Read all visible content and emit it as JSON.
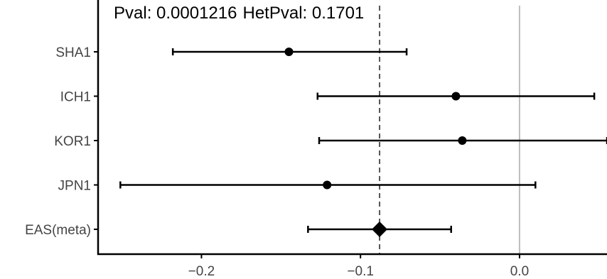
{
  "chart_data": {
    "type": "forest",
    "annotation": {
      "pval_label": "Pval: 0.0001216",
      "hetpval_label": "HetPval: 0.1701"
    },
    "xlim": [
      -0.265,
      0.055
    ],
    "x_ticks": [
      -0.2,
      -0.1,
      0.0
    ],
    "x_tick_labels": [
      "−0.2",
      "−0.1",
      "0.0"
    ],
    "reference_line": 0.0,
    "meta_line": -0.088,
    "studies": [
      {
        "label": "SHA1",
        "estimate": -0.145,
        "lower": -0.218,
        "upper": -0.071
      },
      {
        "label": "ICH1",
        "estimate": -0.04,
        "lower": -0.127,
        "upper": 0.047
      },
      {
        "label": "KOR1",
        "estimate": -0.036,
        "lower": -0.126,
        "upper": 0.055
      },
      {
        "label": "JPN1",
        "estimate": -0.121,
        "lower": -0.251,
        "upper": 0.01
      },
      {
        "label": "EAS(meta)",
        "estimate": -0.088,
        "lower": -0.133,
        "upper": -0.043,
        "is_meta": true
      }
    ],
    "colors": {
      "point": "#000000",
      "reference": "#bdbdbd",
      "meta_line": "#555555",
      "axis": "#000000"
    }
  }
}
